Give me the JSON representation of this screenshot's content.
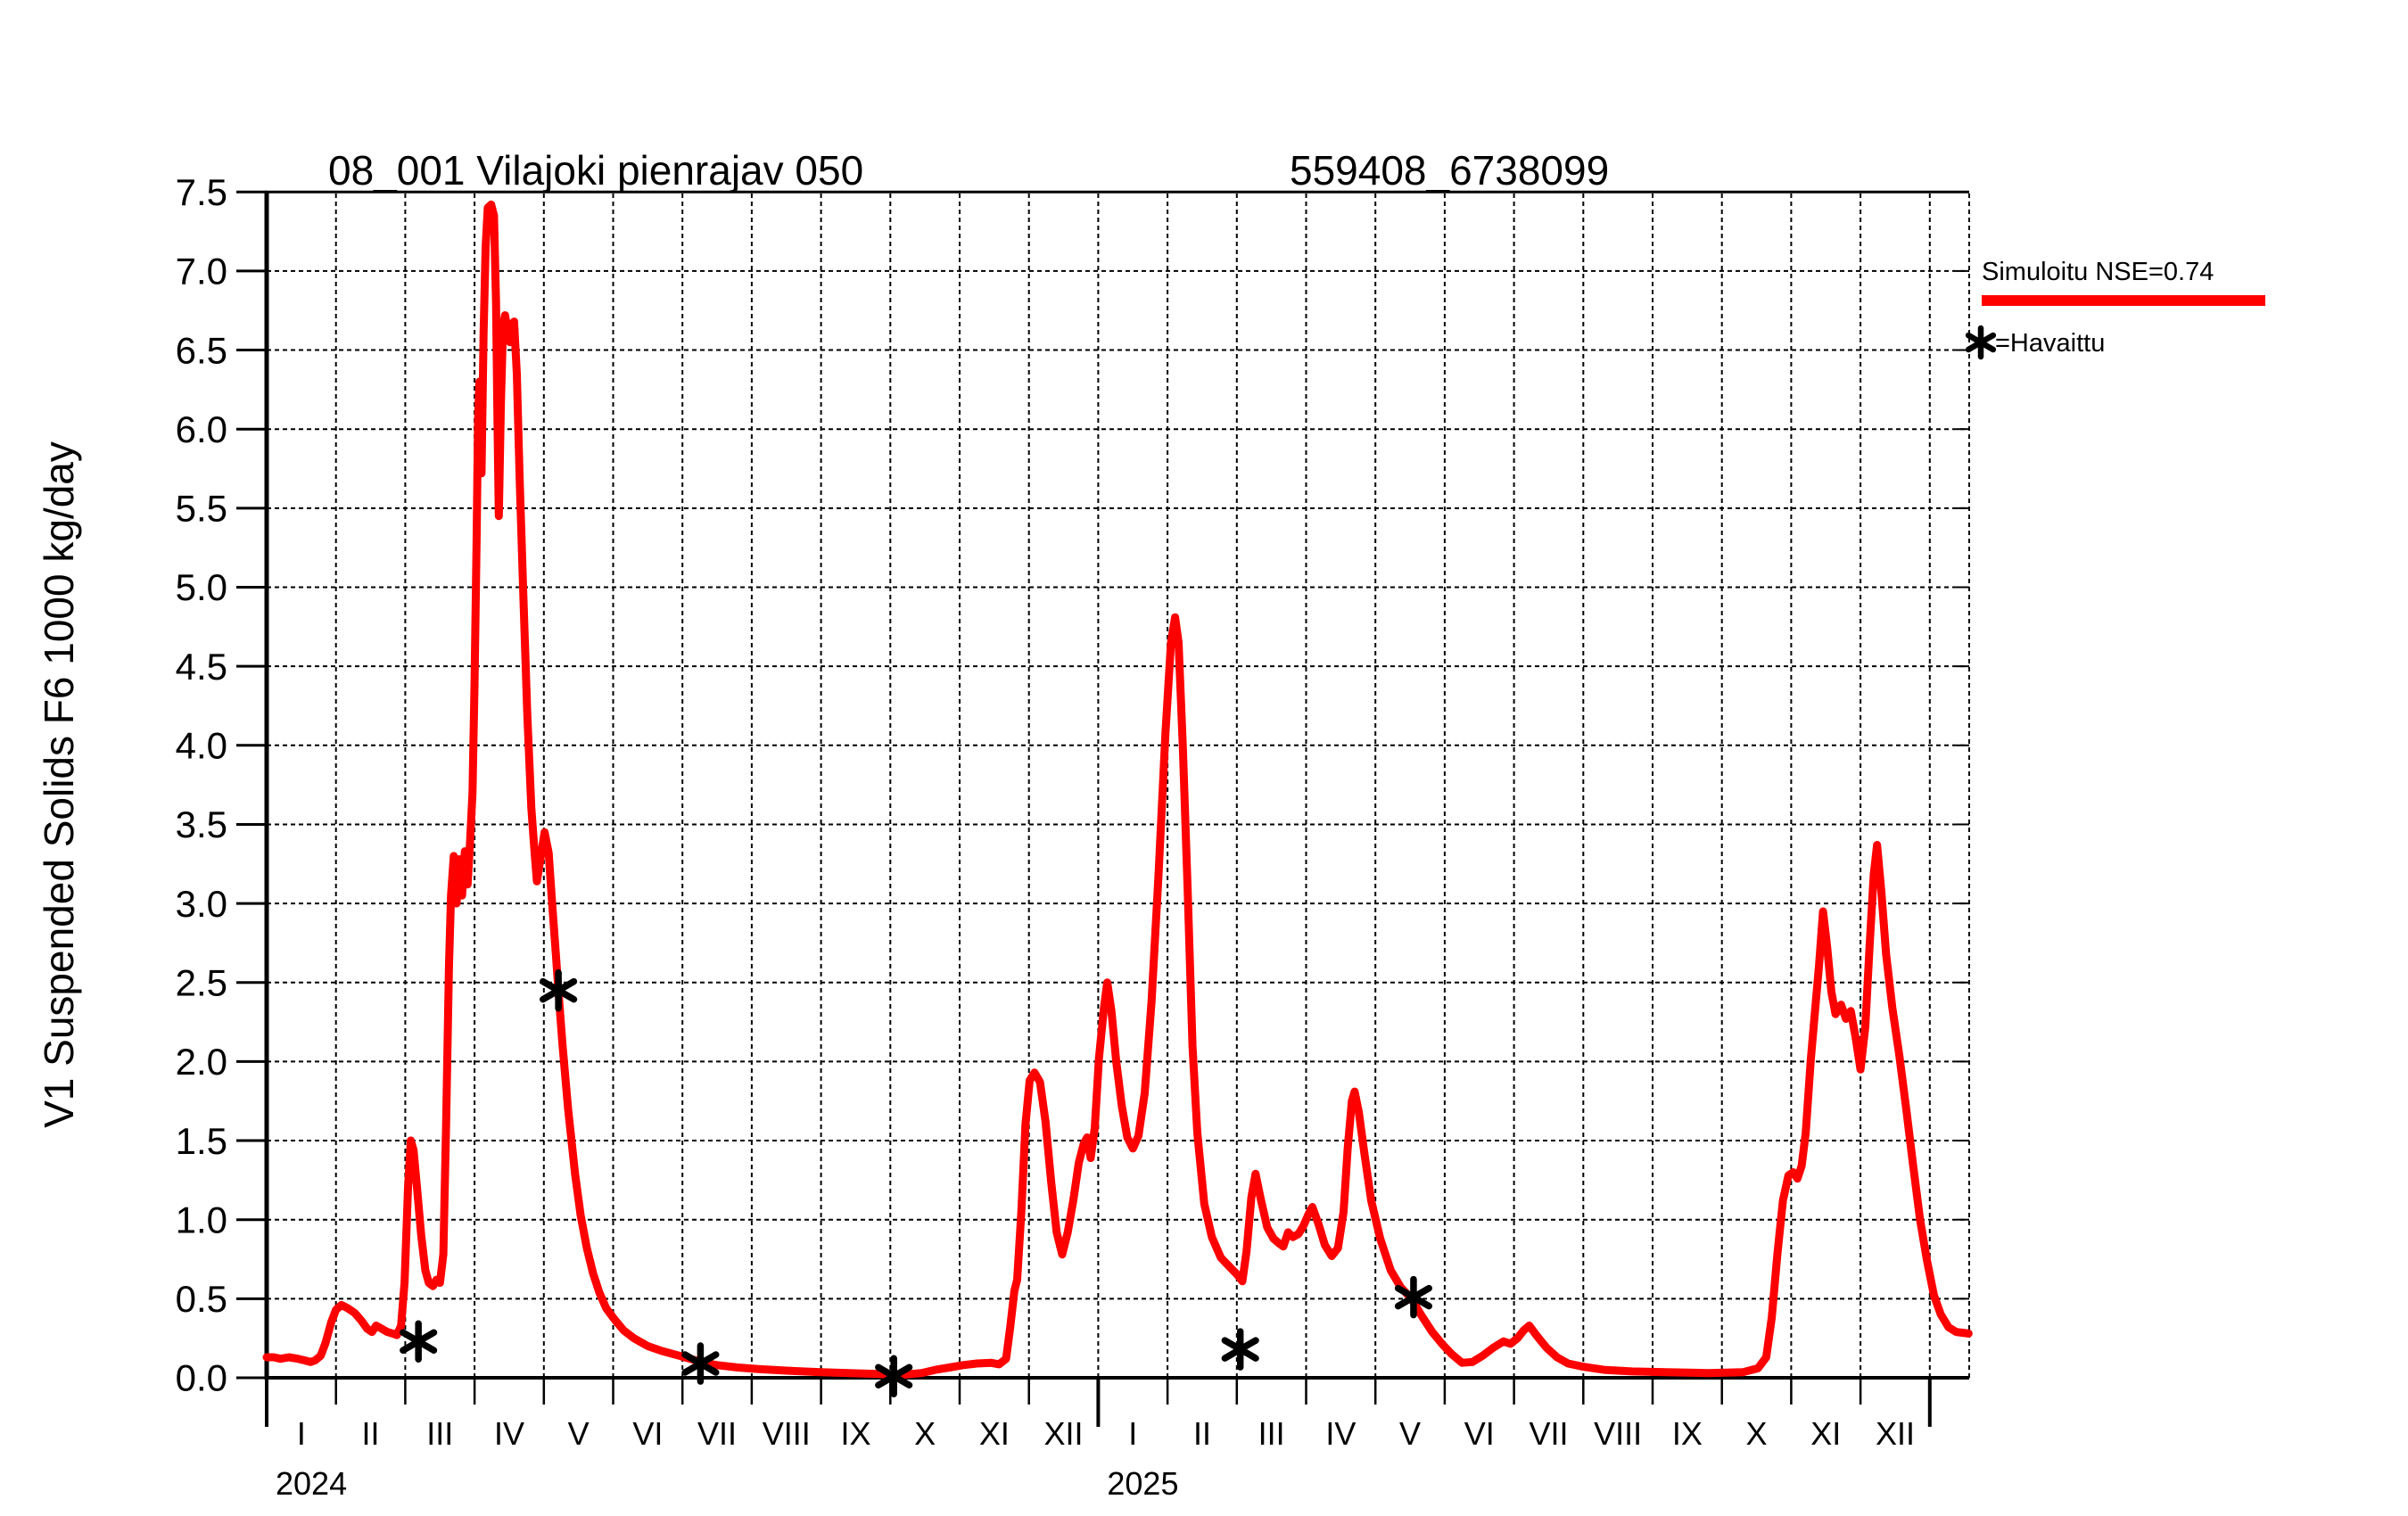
{
  "title_left": "08_001 Vilajoki pienrajav 050",
  "title_right": "559408_6738099",
  "y_axis_label": "V1 Suspended Solids F6 1000 kg/day",
  "legend": {
    "simulated_label": "Simuloitu NSE=0.74",
    "observed_prefix": "=Havaittu",
    "observed_marker_glyph": "asterisk"
  },
  "colors": {
    "simulated": "#ff0000",
    "observed": "#000000",
    "grid": "#000000",
    "frame": "#000000",
    "background": "#ffffff",
    "text": "#000000"
  },
  "chart_data": {
    "type": "line",
    "title": "08_001 Vilajoki pienrajav 050    559408_6738099",
    "xlabel": "",
    "ylabel": "V1 Suspended Solids F6 1000 kg/day",
    "grid": true,
    "legend_position": "right-outside",
    "x_axis": {
      "unit": "month",
      "total_months": 24.56,
      "month_tick_labels": [
        "I",
        "II",
        "III",
        "IV",
        "V",
        "VI",
        "VII",
        "VIII",
        "IX",
        "X",
        "XI",
        "XII"
      ],
      "years": [
        {
          "label": "2024",
          "start_month_index": 0
        },
        {
          "label": "2025",
          "start_month_index": 12
        }
      ]
    },
    "y_axis": {
      "min": 0.0,
      "max": 7.5,
      "tick_step": 0.5,
      "tick_labels": [
        "0.0",
        "0.5",
        "1.0",
        "1.5",
        "2.0",
        "2.5",
        "3.0",
        "3.5",
        "4.0",
        "4.5",
        "5.0",
        "5.5",
        "6.0",
        "6.5",
        "7.0",
        "7.5"
      ]
    },
    "series": [
      {
        "name": "Simuloitu NSE=0.74",
        "type": "line",
        "color": "#ff0000",
        "points": [
          [
            0.0,
            0.13
          ],
          [
            0.1,
            0.13
          ],
          [
            0.2,
            0.12
          ],
          [
            0.32,
            0.13
          ],
          [
            0.45,
            0.12
          ],
          [
            0.55,
            0.11
          ],
          [
            0.63,
            0.1
          ],
          [
            0.7,
            0.11
          ],
          [
            0.78,
            0.14
          ],
          [
            0.85,
            0.22
          ],
          [
            0.93,
            0.35
          ],
          [
            1.0,
            0.43
          ],
          [
            1.08,
            0.46
          ],
          [
            1.17,
            0.44
          ],
          [
            1.27,
            0.41
          ],
          [
            1.37,
            0.36
          ],
          [
            1.45,
            0.31
          ],
          [
            1.52,
            0.29
          ],
          [
            1.58,
            0.33
          ],
          [
            1.66,
            0.31
          ],
          [
            1.74,
            0.29
          ],
          [
            1.82,
            0.28
          ],
          [
            1.88,
            0.27
          ],
          [
            1.94,
            0.33
          ],
          [
            1.99,
            0.6
          ],
          [
            2.04,
            1.2
          ],
          [
            2.08,
            1.5
          ],
          [
            2.12,
            1.44
          ],
          [
            2.17,
            1.2
          ],
          [
            2.23,
            0.9
          ],
          [
            2.29,
            0.68
          ],
          [
            2.34,
            0.6
          ],
          [
            2.4,
            0.58
          ],
          [
            2.45,
            0.62
          ],
          [
            2.5,
            0.6
          ],
          [
            2.55,
            0.78
          ],
          [
            2.59,
            1.6
          ],
          [
            2.63,
            2.6
          ],
          [
            2.66,
            3.05
          ],
          [
            2.7,
            3.3
          ],
          [
            2.74,
            3.0
          ],
          [
            2.78,
            3.28
          ],
          [
            2.82,
            3.05
          ],
          [
            2.86,
            3.33
          ],
          [
            2.9,
            3.12
          ],
          [
            2.93,
            3.35
          ],
          [
            2.97,
            3.7
          ],
          [
            3.0,
            4.4
          ],
          [
            3.03,
            5.3
          ],
          [
            3.05,
            6.05
          ],
          [
            3.07,
            6.3
          ],
          [
            3.1,
            5.72
          ],
          [
            3.13,
            6.6
          ],
          [
            3.16,
            7.15
          ],
          [
            3.19,
            7.4
          ],
          [
            3.24,
            7.42
          ],
          [
            3.28,
            7.35
          ],
          [
            3.31,
            6.8
          ],
          [
            3.33,
            6.1
          ],
          [
            3.35,
            5.45
          ],
          [
            3.38,
            6.15
          ],
          [
            3.41,
            6.65
          ],
          [
            3.44,
            6.72
          ],
          [
            3.48,
            6.62
          ],
          [
            3.51,
            6.55
          ],
          [
            3.54,
            6.66
          ],
          [
            3.57,
            6.68
          ],
          [
            3.61,
            6.35
          ],
          [
            3.65,
            5.7
          ],
          [
            3.7,
            5.0
          ],
          [
            3.76,
            4.2
          ],
          [
            3.82,
            3.6
          ],
          [
            3.87,
            3.3
          ],
          [
            3.9,
            3.14
          ],
          [
            3.95,
            3.28
          ],
          [
            4.01,
            3.45
          ],
          [
            4.07,
            3.32
          ],
          [
            4.12,
            3.0
          ],
          [
            4.17,
            2.7
          ],
          [
            4.21,
            2.45
          ],
          [
            4.27,
            2.1
          ],
          [
            4.35,
            1.7
          ],
          [
            4.45,
            1.29
          ],
          [
            4.53,
            1.03
          ],
          [
            4.62,
            0.82
          ],
          [
            4.71,
            0.66
          ],
          [
            4.8,
            0.54
          ],
          [
            4.9,
            0.44
          ],
          [
            5.0,
            0.38
          ],
          [
            5.15,
            0.3
          ],
          [
            5.3,
            0.25
          ],
          [
            5.5,
            0.2
          ],
          [
            5.7,
            0.17
          ],
          [
            5.95,
            0.14
          ],
          [
            6.15,
            0.115
          ],
          [
            6.3,
            0.095
          ],
          [
            6.5,
            0.08
          ],
          [
            6.8,
            0.065
          ],
          [
            7.1,
            0.055
          ],
          [
            7.5,
            0.045
          ],
          [
            8.0,
            0.035
          ],
          [
            8.5,
            0.028
          ],
          [
            9.0,
            0.022
          ],
          [
            9.2,
            0.02
          ],
          [
            9.45,
            0.03
          ],
          [
            9.65,
            0.05
          ],
          [
            9.85,
            0.065
          ],
          [
            10.05,
            0.08
          ],
          [
            10.25,
            0.09
          ],
          [
            10.45,
            0.095
          ],
          [
            10.57,
            0.085
          ],
          [
            10.67,
            0.12
          ],
          [
            10.73,
            0.32
          ],
          [
            10.79,
            0.55
          ],
          [
            10.83,
            0.62
          ],
          [
            10.89,
            1.05
          ],
          [
            10.95,
            1.6
          ],
          [
            11.01,
            1.88
          ],
          [
            11.08,
            1.93
          ],
          [
            11.16,
            1.87
          ],
          [
            11.24,
            1.62
          ],
          [
            11.32,
            1.24
          ],
          [
            11.4,
            0.92
          ],
          [
            11.48,
            0.78
          ],
          [
            11.56,
            0.92
          ],
          [
            11.64,
            1.12
          ],
          [
            11.72,
            1.36
          ],
          [
            11.79,
            1.48
          ],
          [
            11.84,
            1.52
          ],
          [
            11.89,
            1.39
          ],
          [
            11.95,
            1.58
          ],
          [
            12.01,
            2.02
          ],
          [
            12.08,
            2.33
          ],
          [
            12.13,
            2.5
          ],
          [
            12.19,
            2.32
          ],
          [
            12.26,
            2.0
          ],
          [
            12.34,
            1.72
          ],
          [
            12.42,
            1.52
          ],
          [
            12.5,
            1.45
          ],
          [
            12.58,
            1.53
          ],
          [
            12.67,
            1.8
          ],
          [
            12.77,
            2.38
          ],
          [
            12.87,
            3.18
          ],
          [
            12.97,
            4.08
          ],
          [
            13.05,
            4.65
          ],
          [
            13.11,
            4.81
          ],
          [
            13.16,
            4.65
          ],
          [
            13.22,
            4.0
          ],
          [
            13.29,
            3.1
          ],
          [
            13.36,
            2.1
          ],
          [
            13.43,
            1.55
          ],
          [
            13.53,
            1.1
          ],
          [
            13.64,
            0.89
          ],
          [
            13.77,
            0.76
          ],
          [
            13.9,
            0.7
          ],
          [
            14.01,
            0.65
          ],
          [
            14.08,
            0.61
          ],
          [
            14.14,
            0.8
          ],
          [
            14.21,
            1.14
          ],
          [
            14.27,
            1.29
          ],
          [
            14.35,
            1.12
          ],
          [
            14.44,
            0.95
          ],
          [
            14.53,
            0.88
          ],
          [
            14.61,
            0.85
          ],
          [
            14.67,
            0.83
          ],
          [
            14.74,
            0.92
          ],
          [
            14.81,
            0.89
          ],
          [
            14.89,
            0.91
          ],
          [
            14.96,
            0.96
          ],
          [
            15.03,
            1.03
          ],
          [
            15.09,
            1.08
          ],
          [
            15.18,
            0.97
          ],
          [
            15.27,
            0.84
          ],
          [
            15.37,
            0.77
          ],
          [
            15.46,
            0.82
          ],
          [
            15.54,
            1.05
          ],
          [
            15.6,
            1.45
          ],
          [
            15.66,
            1.75
          ],
          [
            15.7,
            1.81
          ],
          [
            15.76,
            1.68
          ],
          [
            15.84,
            1.42
          ],
          [
            15.94,
            1.12
          ],
          [
            16.07,
            0.88
          ],
          [
            16.22,
            0.68
          ],
          [
            16.37,
            0.57
          ],
          [
            16.52,
            0.5
          ],
          [
            16.67,
            0.39
          ],
          [
            16.82,
            0.29
          ],
          [
            16.97,
            0.21
          ],
          [
            17.1,
            0.15
          ],
          [
            17.25,
            0.095
          ],
          [
            17.4,
            0.1
          ],
          [
            17.55,
            0.14
          ],
          [
            17.7,
            0.19
          ],
          [
            17.85,
            0.23
          ],
          [
            17.95,
            0.215
          ],
          [
            18.05,
            0.25
          ],
          [
            18.14,
            0.3
          ],
          [
            18.22,
            0.33
          ],
          [
            18.32,
            0.27
          ],
          [
            18.47,
            0.19
          ],
          [
            18.62,
            0.13
          ],
          [
            18.78,
            0.09
          ],
          [
            19.0,
            0.07
          ],
          [
            19.3,
            0.05
          ],
          [
            19.7,
            0.04
          ],
          [
            20.2,
            0.035
          ],
          [
            20.8,
            0.03
          ],
          [
            21.3,
            0.035
          ],
          [
            21.52,
            0.06
          ],
          [
            21.64,
            0.13
          ],
          [
            21.72,
            0.38
          ],
          [
            21.8,
            0.78
          ],
          [
            21.88,
            1.12
          ],
          [
            21.96,
            1.28
          ],
          [
            22.03,
            1.3
          ],
          [
            22.09,
            1.26
          ],
          [
            22.15,
            1.34
          ],
          [
            22.21,
            1.55
          ],
          [
            22.28,
            2.0
          ],
          [
            22.34,
            2.3
          ],
          [
            22.4,
            2.6
          ],
          [
            22.46,
            2.95
          ],
          [
            22.52,
            2.72
          ],
          [
            22.58,
            2.44
          ],
          [
            22.64,
            2.3
          ],
          [
            22.72,
            2.36
          ],
          [
            22.79,
            2.27
          ],
          [
            22.86,
            2.32
          ],
          [
            22.93,
            2.15
          ],
          [
            23.0,
            1.95
          ],
          [
            23.07,
            2.22
          ],
          [
            23.13,
            2.72
          ],
          [
            23.19,
            3.18
          ],
          [
            23.24,
            3.37
          ],
          [
            23.3,
            3.08
          ],
          [
            23.37,
            2.68
          ],
          [
            23.46,
            2.34
          ],
          [
            23.56,
            2.04
          ],
          [
            23.66,
            1.7
          ],
          [
            23.76,
            1.34
          ],
          [
            23.86,
            1.0
          ],
          [
            23.96,
            0.74
          ],
          [
            24.06,
            0.52
          ],
          [
            24.16,
            0.4
          ],
          [
            24.27,
            0.32
          ],
          [
            24.38,
            0.29
          ],
          [
            24.56,
            0.28
          ]
        ]
      },
      {
        "name": "Havaittu",
        "type": "scatter",
        "marker": "asterisk",
        "color": "#000000",
        "points": [
          [
            2.19,
            0.23
          ],
          [
            4.21,
            2.45
          ],
          [
            6.26,
            0.09
          ],
          [
            9.05,
            0.01
          ],
          [
            14.05,
            0.18
          ],
          [
            16.55,
            0.51
          ]
        ]
      }
    ]
  }
}
